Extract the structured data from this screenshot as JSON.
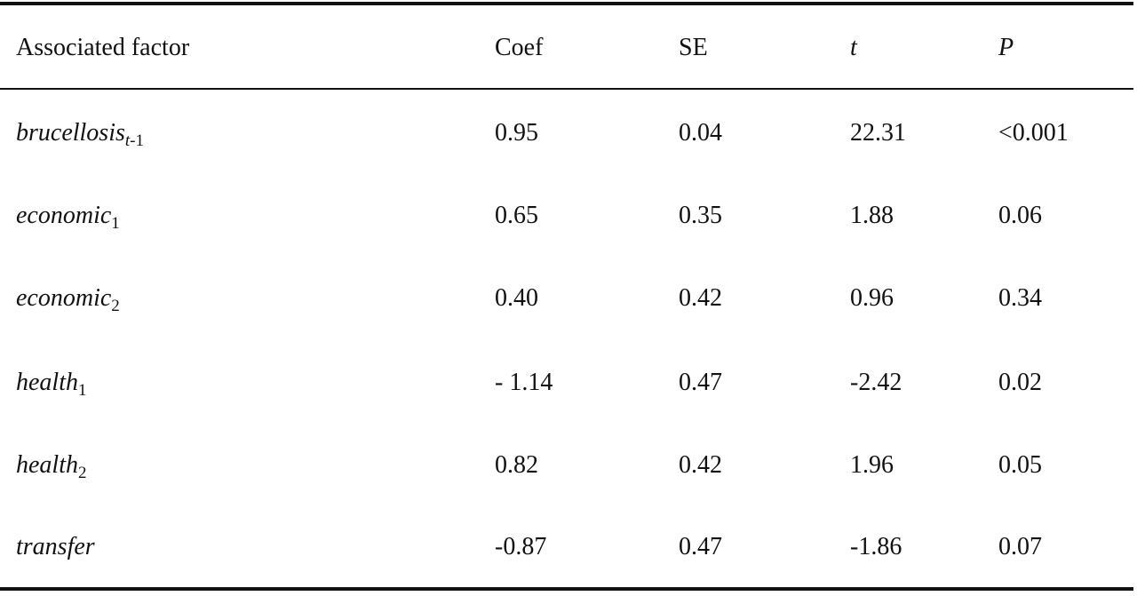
{
  "table": {
    "headers": {
      "factor": "Associated factor",
      "coef": "Coef",
      "se": "SE",
      "t": "t",
      "p": "P"
    },
    "rows": [
      {
        "name": "brucellosis",
        "sub": "t-1",
        "coef": "0.95",
        "se": "0.04",
        "t": "22.31",
        "p": "<0.001"
      },
      {
        "name": "economic",
        "sub": "1",
        "coef": "0.65",
        "se": "0.35",
        "t": "1.88",
        "p": "0.06"
      },
      {
        "name": "economic",
        "sub": "2",
        "coef": "0.40",
        "se": "0.42",
        "t": "0.96",
        "p": "0.34"
      },
      {
        "name": "health",
        "sub": "1",
        "coef": "- 1.14",
        "se": "0.47",
        "t": "-2.42",
        "p": "0.02"
      },
      {
        "name": "health",
        "sub": "2",
        "coef": "0.82",
        "se": "0.42",
        "t": "1.96",
        "p": "0.05"
      },
      {
        "name": "transfer",
        "sub": "",
        "coef": "-0.87",
        "se": "0.47",
        "t": "-1.86",
        "p": "0.07"
      }
    ]
  }
}
